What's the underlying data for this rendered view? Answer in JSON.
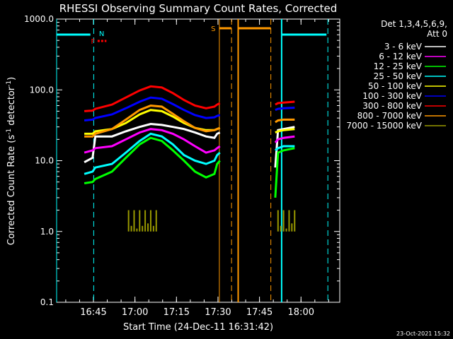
{
  "chart_data": {
    "type": "line",
    "title": "RHESSI Observing Summary Count Rates, Corrected",
    "xlabel": "Start Time (24-Dec-11 16:31:42)",
    "ylabel": "Corrected Count Rate (s",
    "ylabel_sup1": "-1",
    "ylabel_mid": " detector",
    "ylabel_sup2": "-1",
    "ylabel_end": ")",
    "footer": "23-Oct-2021 15:32",
    "y_scale": "log",
    "ylim": [
      0.1,
      1000
    ],
    "xlim_min": [
      0,
      102.3
    ],
    "x_ticks": [
      {
        "min": 13.3,
        "label": "16:45"
      },
      {
        "min": 28.3,
        "label": "17:00"
      },
      {
        "min": 43.3,
        "label": "17:15"
      },
      {
        "min": 58.3,
        "label": "17:30"
      },
      {
        "min": 73.3,
        "label": "17:45"
      },
      {
        "min": 88.3,
        "label": "18:00"
      }
    ],
    "y_ticks": [
      {
        "v": 0.1,
        "label": "0.1"
      },
      {
        "v": 1,
        "label": "1.0"
      },
      {
        "v": 10,
        "label": "10.0"
      },
      {
        "v": 100,
        "label": "100.0"
      },
      {
        "v": 1000,
        "label": "1000.0"
      }
    ],
    "legend": {
      "header1": "Det 1,3,4,5,6,9,",
      "header2": "Att 0",
      "placement": "right"
    },
    "series": [
      {
        "name": "3 - 6 keV",
        "color": "#ffffff",
        "points": [
          [
            10,
            9.5
          ],
          [
            13,
            11
          ],
          [
            14,
            22
          ],
          [
            20,
            22
          ],
          [
            25,
            26
          ],
          [
            30,
            30
          ],
          [
            34,
            33
          ],
          [
            38,
            32
          ],
          [
            42,
            30
          ],
          [
            46,
            28
          ],
          [
            50,
            25
          ],
          [
            54,
            22
          ],
          [
            57,
            21
          ],
          [
            58,
            24
          ],
          [
            59,
            25
          ],
          [
            79,
            8
          ],
          [
            80,
            27
          ],
          [
            82,
            28
          ],
          [
            86,
            30
          ]
        ]
      },
      {
        "name": "6 - 12 keV",
        "color": "#ff00ff",
        "points": [
          [
            10,
            13
          ],
          [
            13,
            14
          ],
          [
            14,
            15
          ],
          [
            20,
            16
          ],
          [
            25,
            20
          ],
          [
            30,
            25
          ],
          [
            34,
            28
          ],
          [
            38,
            27
          ],
          [
            42,
            24
          ],
          [
            46,
            20
          ],
          [
            50,
            16
          ],
          [
            54,
            13
          ],
          [
            57,
            14
          ],
          [
            58,
            15
          ],
          [
            59,
            16
          ],
          [
            79,
            18
          ],
          [
            80,
            20
          ],
          [
            82,
            21
          ],
          [
            86,
            22
          ]
        ]
      },
      {
        "name": "12 - 25 keV",
        "color": "#00ff00",
        "points": [
          [
            10,
            4.8
          ],
          [
            13,
            5
          ],
          [
            14,
            5.5
          ],
          [
            20,
            7
          ],
          [
            25,
            11
          ],
          [
            30,
            17
          ],
          [
            34,
            21
          ],
          [
            38,
            19
          ],
          [
            42,
            14
          ],
          [
            46,
            10
          ],
          [
            50,
            7
          ],
          [
            54,
            5.8
          ],
          [
            57,
            6.5
          ],
          [
            58,
            9
          ],
          [
            59,
            10
          ],
          [
            79,
            3
          ],
          [
            80,
            13
          ],
          [
            82,
            14
          ],
          [
            86,
            15
          ]
        ]
      },
      {
        "name": "25 - 50 keV",
        "color": "#00ffff",
        "points": [
          [
            10,
            6.5
          ],
          [
            13,
            7
          ],
          [
            14,
            8
          ],
          [
            20,
            9
          ],
          [
            25,
            13
          ],
          [
            30,
            19
          ],
          [
            34,
            24
          ],
          [
            38,
            22
          ],
          [
            42,
            17
          ],
          [
            46,
            12
          ],
          [
            50,
            10
          ],
          [
            54,
            9
          ],
          [
            57,
            10
          ],
          [
            58,
            12
          ],
          [
            59,
            13
          ],
          [
            79,
            14
          ],
          [
            80,
            15
          ],
          [
            82,
            16
          ],
          [
            86,
            16
          ]
        ]
      },
      {
        "name": "50 - 100 keV",
        "color": "#ffff00",
        "points": [
          [
            10,
            24
          ],
          [
            13,
            24
          ],
          [
            14,
            26
          ],
          [
            20,
            28
          ],
          [
            25,
            34
          ],
          [
            30,
            45
          ],
          [
            34,
            52
          ],
          [
            38,
            50
          ],
          [
            42,
            42
          ],
          [
            46,
            34
          ],
          [
            50,
            29
          ],
          [
            54,
            27
          ],
          [
            57,
            27
          ],
          [
            58,
            28
          ],
          [
            59,
            29
          ],
          [
            79,
            25
          ],
          [
            80,
            26
          ],
          [
            82,
            27
          ],
          [
            86,
            28
          ]
        ]
      },
      {
        "name": "100 - 300 keV",
        "color": "#0000ff",
        "points": [
          [
            10,
            37
          ],
          [
            13,
            38
          ],
          [
            14,
            40
          ],
          [
            20,
            45
          ],
          [
            25,
            55
          ],
          [
            30,
            68
          ],
          [
            34,
            78
          ],
          [
            38,
            75
          ],
          [
            42,
            63
          ],
          [
            46,
            52
          ],
          [
            50,
            44
          ],
          [
            54,
            40
          ],
          [
            57,
            41
          ],
          [
            58,
            43
          ],
          [
            59,
            44
          ],
          [
            79,
            52
          ],
          [
            80,
            54
          ],
          [
            82,
            55
          ],
          [
            86,
            56
          ]
        ]
      },
      {
        "name": "300 - 800 keV",
        "color": "#ff0000",
        "points": [
          [
            10,
            50
          ],
          [
            13,
            51
          ],
          [
            14,
            54
          ],
          [
            20,
            62
          ],
          [
            25,
            78
          ],
          [
            30,
            98
          ],
          [
            34,
            112
          ],
          [
            38,
            108
          ],
          [
            42,
            90
          ],
          [
            46,
            72
          ],
          [
            50,
            60
          ],
          [
            54,
            55
          ],
          [
            57,
            58
          ],
          [
            58,
            62
          ],
          [
            59,
            65
          ],
          [
            79,
            62
          ],
          [
            80,
            65
          ],
          [
            82,
            66
          ],
          [
            86,
            68
          ]
        ]
      },
      {
        "name": "800 - 7000 keV",
        "color": "#ff9900",
        "points": [
          [
            10,
            22
          ],
          [
            13,
            22
          ],
          [
            14,
            24
          ],
          [
            20,
            28
          ],
          [
            25,
            38
          ],
          [
            30,
            52
          ],
          [
            34,
            60
          ],
          [
            38,
            58
          ],
          [
            42,
            46
          ],
          [
            46,
            36
          ],
          [
            50,
            29
          ],
          [
            54,
            26
          ],
          [
            57,
            27
          ],
          [
            58,
            28
          ],
          [
            59,
            29
          ],
          [
            79,
            35
          ],
          [
            80,
            37
          ],
          [
            82,
            38
          ],
          [
            86,
            38
          ]
        ]
      },
      {
        "name": "7000 - 15000 keV",
        "color": "#999900",
        "points": [
          [
            26,
            2.0
          ],
          [
            27,
            1.2
          ],
          [
            28,
            2.0
          ],
          [
            29,
            1.1
          ],
          [
            30,
            2.0
          ],
          [
            31,
            1.2
          ],
          [
            32,
            2.0
          ],
          [
            33,
            1.3
          ],
          [
            34,
            2.0
          ],
          [
            35,
            1.2
          ],
          [
            36,
            2.0
          ],
          [
            80,
            2.0
          ],
          [
            81,
            1.2
          ],
          [
            82,
            2.0
          ],
          [
            83,
            1.1
          ],
          [
            84,
            2.0
          ],
          [
            85,
            1.3
          ],
          [
            86,
            2.0
          ]
        ]
      }
    ],
    "orbit_flags": {
      "N_label": "N",
      "F_label": "F",
      "S_label": "S",
      "night_color": "#00ffff",
      "saa_color": "#ff9900",
      "flare_color": "#ff0000"
    }
  }
}
